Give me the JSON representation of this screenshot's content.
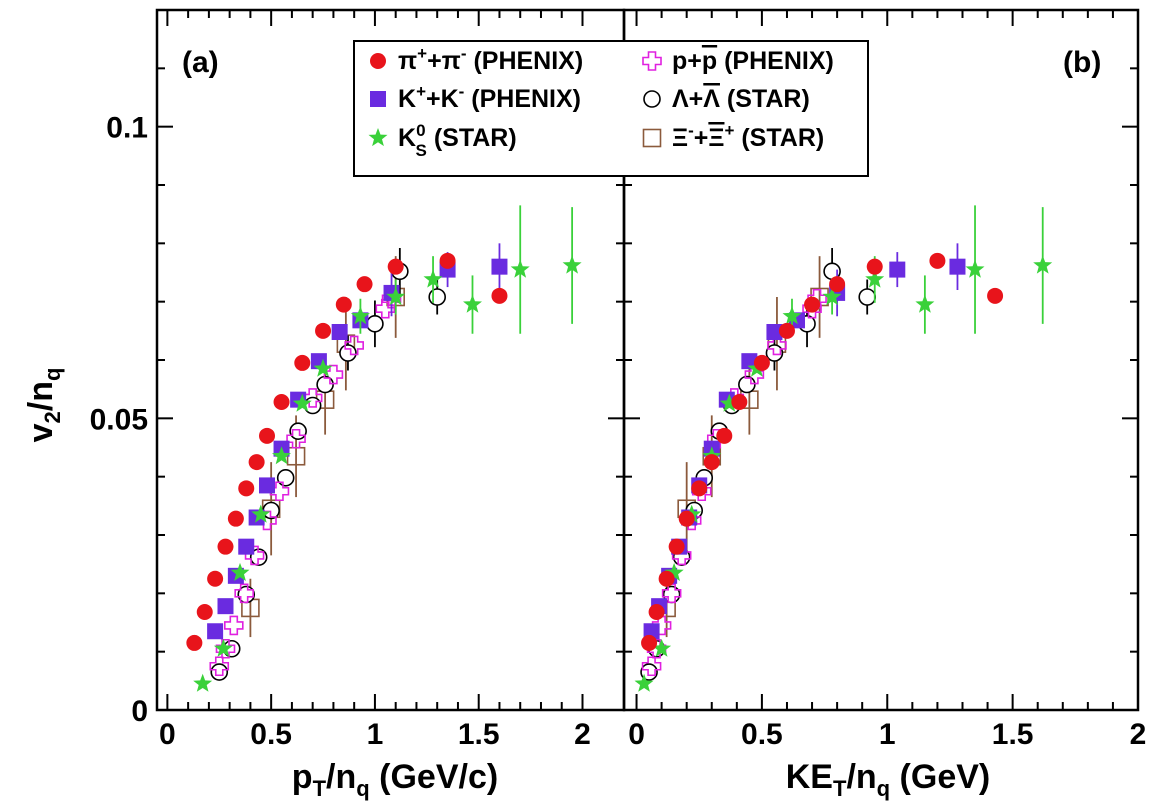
{
  "chart_data": {
    "type": "scatter",
    "ylabel": {
      "main": "v",
      "sub1": "2",
      "slash": "/n",
      "sub2": "q"
    },
    "ylim": [
      0,
      0.12
    ],
    "yticks": [
      "0",
      "0.05",
      "0.1"
    ],
    "xticks": [
      "0",
      "0.5",
      "1",
      "1.5",
      "2"
    ],
    "legend": [
      {
        "id": "pi",
        "base": "π",
        "sup": "+",
        "mid": "+π",
        "sup2": "-",
        "rest": " (PHENIX)",
        "color": "#e8141b",
        "marker": "circle-filled"
      },
      {
        "id": "k",
        "base": "K",
        "sup": "+",
        "mid": "+K",
        "sup2": "-",
        "rest": " (PHENIX)",
        "color": "#6a2be0",
        "marker": "square-filled"
      },
      {
        "id": "ks",
        "base": "K",
        "sup": "0",
        "sub": "S",
        "rest": " (STAR)",
        "color": "#3ad13a",
        "marker": "star"
      },
      {
        "id": "p",
        "base": "p+",
        "bar": "p",
        "rest": " (PHENIX)",
        "color": "#e020e0",
        "marker": "cross-open"
      },
      {
        "id": "lam",
        "base": "Λ+",
        "bar": "Λ",
        "rest": " (STAR)",
        "color": "#000000",
        "marker": "circle-open"
      },
      {
        "id": "xi",
        "base": "Ξ",
        "sup": "-",
        "mid": "+",
        "bar": "Ξ",
        "sup2": "+",
        "rest": " (STAR)",
        "color": "#8b5a3c",
        "marker": "square-open"
      }
    ],
    "panels": [
      {
        "label": "(a)",
        "xlabel": {
          "main": "p",
          "sub1": "T",
          "slash": "/n",
          "sub2": "q",
          "rest": " (GeV/c)"
        },
        "xlim": [
          -0.05,
          2.2
        ],
        "series": [
          {
            "ref": "pi",
            "points": [
              [
                0.13,
                0.0115
              ],
              [
                0.18,
                0.0168
              ],
              [
                0.23,
                0.0225
              ],
              [
                0.28,
                0.028
              ],
              [
                0.33,
                0.0328
              ],
              [
                0.38,
                0.038
              ],
              [
                0.43,
                0.0425
              ],
              [
                0.48,
                0.047
              ],
              [
                0.55,
                0.0528
              ],
              [
                0.65,
                0.0595
              ],
              [
                0.75,
                0.065
              ],
              [
                0.85,
                0.0695
              ],
              [
                0.95,
                0.073
              ],
              [
                1.1,
                0.076
              ],
              [
                1.35,
                0.077
              ],
              [
                1.6,
                0.071
              ]
            ]
          },
          {
            "ref": "k",
            "points": [
              [
                0.23,
                0.0135
              ],
              [
                0.28,
                0.0178
              ],
              [
                0.33,
                0.023
              ],
              [
                0.38,
                0.028
              ],
              [
                0.43,
                0.033
              ],
              [
                0.48,
                0.0385
              ],
              [
                0.55,
                0.0448
              ],
              [
                0.63,
                0.0532
              ],
              [
                0.73,
                0.0598
              ],
              [
                0.83,
                0.0648
              ],
              [
                0.93,
                0.0668
              ],
              [
                1.08,
                0.0715
              ],
              [
                1.35,
                0.0755
              ],
              [
                1.6,
                0.076
              ]
            ],
            "err": [
              0,
              0,
              0,
              0,
              0,
              0,
              0,
              0,
              0,
              0,
              0,
              0.004,
              0.003,
              0.004
            ]
          },
          {
            "ref": "ks",
            "points": [
              [
                0.17,
                0.0045
              ],
              [
                0.27,
                0.0105
              ],
              [
                0.35,
                0.0235
              ],
              [
                0.45,
                0.0335
              ],
              [
                0.55,
                0.0435
              ],
              [
                0.65,
                0.0525
              ],
              [
                0.75,
                0.0585
              ],
              [
                0.93,
                0.0675
              ],
              [
                1.1,
                0.0708
              ],
              [
                1.28,
                0.0738
              ],
              [
                1.47,
                0.0695
              ],
              [
                1.7,
                0.0755
              ],
              [
                1.95,
                0.0762
              ]
            ],
            "err": [
              0,
              0,
              0,
              0,
              0,
              0,
              0,
              0.003,
              0.003,
              0.004,
              0.005,
              0.011,
              0.01
            ]
          },
          {
            "ref": "p",
            "points": [
              [
                0.25,
                0.0075
              ],
              [
                0.28,
                0.0105
              ],
              [
                0.32,
                0.0145
              ],
              [
                0.37,
                0.02
              ],
              [
                0.42,
                0.0265
              ],
              [
                0.48,
                0.0325
              ],
              [
                0.54,
                0.0375
              ],
              [
                0.62,
                0.0465
              ],
              [
                0.7,
                0.0535
              ],
              [
                0.8,
                0.0575
              ],
              [
                0.9,
                0.0625
              ],
              [
                1.05,
                0.0688
              ],
              [
                1.08,
                0.0705
              ]
            ]
          },
          {
            "ref": "lam",
            "points": [
              [
                0.25,
                0.0065
              ],
              [
                0.31,
                0.0105
              ],
              [
                0.38,
                0.0198
              ],
              [
                0.44,
                0.0262
              ],
              [
                0.5,
                0.0342
              ],
              [
                0.57,
                0.0398
              ],
              [
                0.63,
                0.0478
              ],
              [
                0.7,
                0.0522
              ],
              [
                0.76,
                0.0558
              ],
              [
                0.87,
                0.0612
              ],
              [
                1,
                0.0662
              ],
              [
                1.12,
                0.0752
              ],
              [
                1.3,
                0.0708
              ]
            ],
            "err": [
              0,
              0,
              0,
              0,
              0,
              0,
              0,
              0,
              0,
              0.003,
              0.004,
              0.004,
              0.003
            ]
          },
          {
            "ref": "xi",
            "points": [
              [
                0.4,
                0.0175
              ],
              [
                0.5,
                0.0345
              ],
              [
                0.62,
                0.0435
              ],
              [
                0.76,
                0.0532
              ],
              [
                0.86,
                0.0628
              ],
              [
                1.1,
                0.0708
              ]
            ],
            "err": [
              0.005,
              0.008,
              0.007,
              0.006,
              0.008,
              0.007
            ]
          }
        ]
      },
      {
        "label": "(b)",
        "xlabel": {
          "main": "KE",
          "sub1": "T",
          "slash": "/n",
          "sub2": "q",
          "rest": " (GeV)"
        },
        "xlim": [
          -0.05,
          2.0
        ],
        "series": [
          {
            "ref": "pi",
            "points": [
              [
                0.05,
                0.0115
              ],
              [
                0.08,
                0.0168
              ],
              [
                0.12,
                0.0225
              ],
              [
                0.16,
                0.028
              ],
              [
                0.2,
                0.0328
              ],
              [
                0.25,
                0.038
              ],
              [
                0.3,
                0.0425
              ],
              [
                0.35,
                0.047
              ],
              [
                0.41,
                0.0528
              ],
              [
                0.5,
                0.0595
              ],
              [
                0.6,
                0.065
              ],
              [
                0.7,
                0.0695
              ],
              [
                0.8,
                0.073
              ],
              [
                0.95,
                0.076
              ],
              [
                1.2,
                0.077
              ],
              [
                1.43,
                0.071
              ]
            ]
          },
          {
            "ref": "k",
            "points": [
              [
                0.06,
                0.0135
              ],
              [
                0.09,
                0.0178
              ],
              [
                0.13,
                0.023
              ],
              [
                0.17,
                0.028
              ],
              [
                0.21,
                0.033
              ],
              [
                0.25,
                0.0385
              ],
              [
                0.3,
                0.0448
              ],
              [
                0.36,
                0.0532
              ],
              [
                0.45,
                0.0598
              ],
              [
                0.55,
                0.0648
              ],
              [
                0.64,
                0.0668
              ],
              [
                0.8,
                0.0715
              ],
              [
                1.04,
                0.0755
              ],
              [
                1.28,
                0.076
              ]
            ],
            "err": [
              0,
              0,
              0,
              0,
              0,
              0,
              0,
              0,
              0,
              0,
              0,
              0.004,
              0.003,
              0.004
            ]
          },
          {
            "ref": "ks",
            "points": [
              [
                0.03,
                0.0045
              ],
              [
                0.1,
                0.0105
              ],
              [
                0.15,
                0.0235
              ],
              [
                0.22,
                0.0335
              ],
              [
                0.3,
                0.0435
              ],
              [
                0.37,
                0.0525
              ],
              [
                0.48,
                0.0585
              ],
              [
                0.62,
                0.0675
              ],
              [
                0.78,
                0.0708
              ],
              [
                0.95,
                0.0738
              ],
              [
                1.15,
                0.0695
              ],
              [
                1.35,
                0.0755
              ],
              [
                1.62,
                0.0762
              ]
            ],
            "err": [
              0,
              0,
              0,
              0,
              0,
              0,
              0,
              0.003,
              0.003,
              0.004,
              0.005,
              0.011,
              0.01
            ]
          },
          {
            "ref": "p",
            "points": [
              [
                0.06,
                0.0075
              ],
              [
                0.08,
                0.0105
              ],
              [
                0.1,
                0.0145
              ],
              [
                0.14,
                0.02
              ],
              [
                0.18,
                0.0265
              ],
              [
                0.22,
                0.0325
              ],
              [
                0.26,
                0.0375
              ],
              [
                0.32,
                0.0465
              ],
              [
                0.39,
                0.0535
              ],
              [
                0.47,
                0.0575
              ],
              [
                0.56,
                0.0625
              ],
              [
                0.7,
                0.0688
              ],
              [
                0.72,
                0.0705
              ]
            ]
          },
          {
            "ref": "lam",
            "points": [
              [
                0.05,
                0.0065
              ],
              [
                0.08,
                0.0105
              ],
              [
                0.14,
                0.0198
              ],
              [
                0.18,
                0.0262
              ],
              [
                0.23,
                0.0342
              ],
              [
                0.27,
                0.0398
              ],
              [
                0.33,
                0.0478
              ],
              [
                0.38,
                0.0522
              ],
              [
                0.44,
                0.0558
              ],
              [
                0.55,
                0.0612
              ],
              [
                0.68,
                0.0662
              ],
              [
                0.78,
                0.0752
              ],
              [
                0.92,
                0.0708
              ]
            ],
            "err": [
              0,
              0,
              0,
              0,
              0,
              0,
              0,
              0,
              0,
              0.003,
              0.004,
              0.004,
              0.003
            ]
          },
          {
            "ref": "xi",
            "points": [
              [
                0.12,
                0.0175
              ],
              [
                0.2,
                0.0345
              ],
              [
                0.3,
                0.0435
              ],
              [
                0.45,
                0.0532
              ],
              [
                0.56,
                0.0628
              ],
              [
                0.73,
                0.0708
              ]
            ],
            "err": [
              0.005,
              0.008,
              0.007,
              0.006,
              0.008,
              0.007
            ]
          }
        ]
      }
    ]
  }
}
